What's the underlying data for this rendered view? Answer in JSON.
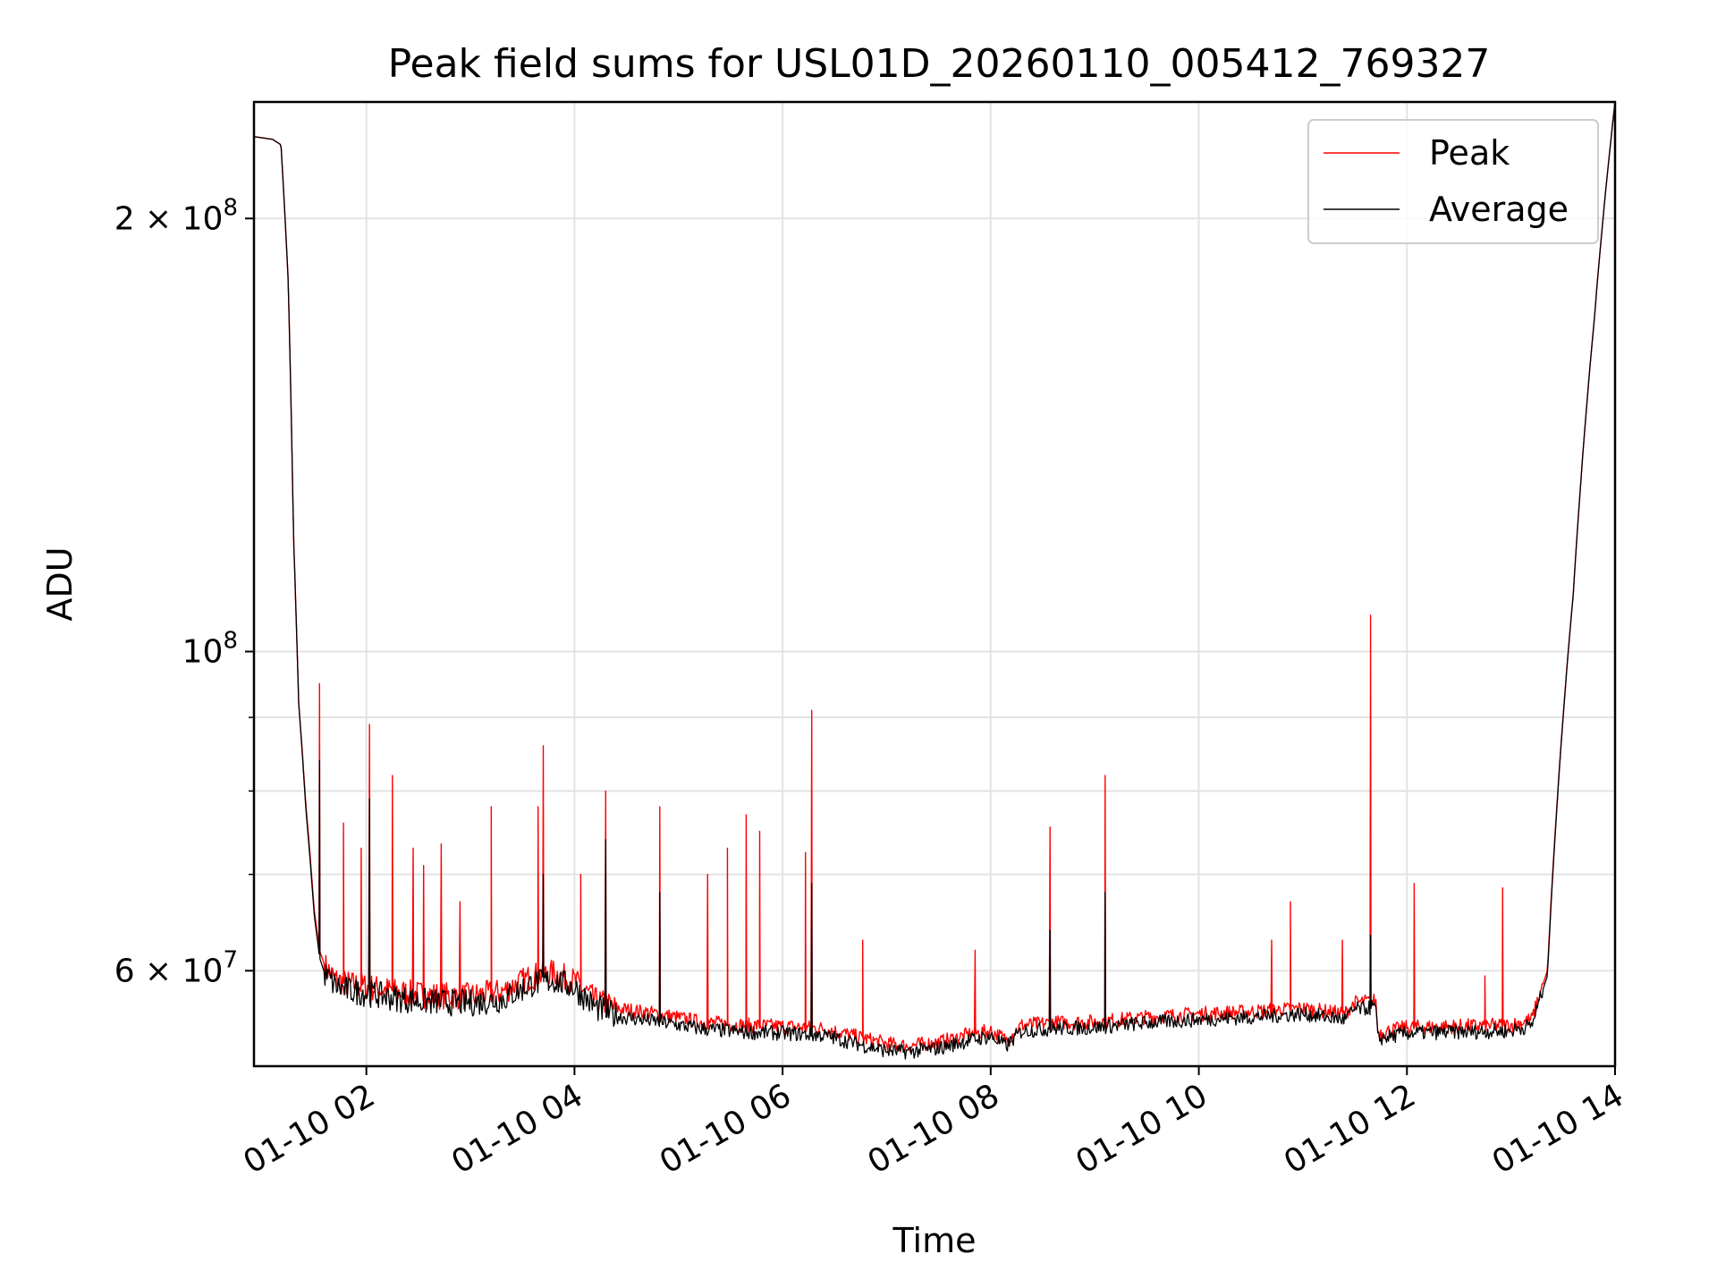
{
  "chart_data": {
    "type": "line",
    "title": "Peak field sums for USL01D_20260110_005412_769327",
    "xlabel": "Time",
    "ylabel": "ADU",
    "yscale": "log",
    "ylim": [
      51500000,
      241000000
    ],
    "xlim_hours": [
      0.92,
      14.0
    ],
    "x_ticks": [
      {
        "hours": 2,
        "label": "01-10 02"
      },
      {
        "hours": 4,
        "label": "01-10 04"
      },
      {
        "hours": 6,
        "label": "01-10 06"
      },
      {
        "hours": 8,
        "label": "01-10 08"
      },
      {
        "hours": 10,
        "label": "01-10 10"
      },
      {
        "hours": 12,
        "label": "01-10 12"
      },
      {
        "hours": 14,
        "label": "01-10 14"
      }
    ],
    "y_major_ticks": [
      {
        "value": 60000000,
        "label_base": "6 × 10",
        "label_exp": "7"
      },
      {
        "value": 100000000,
        "label_base": "10",
        "label_exp": "8"
      },
      {
        "value": 200000000,
        "label_base": "2 × 10",
        "label_exp": "8"
      }
    ],
    "y_minor_ticks": [
      70000000,
      80000000,
      90000000
    ],
    "grid": true,
    "legend_position": "top-right",
    "series": [
      {
        "name": "Peak",
        "color": "#ff0000",
        "x_hours": [
          0.92,
          1.1,
          1.18,
          1.25,
          1.3,
          1.35,
          1.42,
          1.5,
          1.55,
          1.6,
          1.7,
          1.8,
          2.0,
          2.3,
          2.6,
          3.0,
          3.3,
          3.6,
          3.8,
          4.0,
          4.2,
          4.4,
          4.8,
          5.2,
          5.6,
          6.0,
          6.4,
          6.8,
          7.0,
          7.2,
          7.5,
          7.8,
          8.0,
          8.15,
          8.3,
          8.6,
          9.0,
          9.5,
          10.0,
          10.5,
          11.0,
          11.4,
          11.5,
          11.7,
          11.72,
          12.0,
          12.5,
          13.0,
          13.2,
          13.35,
          13.6,
          13.8,
          14.0
        ],
        "y": [
          228000000,
          227000000,
          225000000,
          180000000,
          120000000,
          92000000,
          78000000,
          66000000,
          62000000,
          60500000,
          59200000,
          58800000,
          58500000,
          58000000,
          57700000,
          57600000,
          58000000,
          59500000,
          59800000,
          59000000,
          57200000,
          56500000,
          56000000,
          55300000,
          55000000,
          54900000,
          54700000,
          53800000,
          53400000,
          53200000,
          53500000,
          54200000,
          54500000,
          53700000,
          55000000,
          55200000,
          55300000,
          55700000,
          56000000,
          56200000,
          56500000,
          56000000,
          57000000,
          57200000,
          54300000,
          54800000,
          54900000,
          55000000,
          55500000,
          60000000,
          110000000,
          170000000,
          241000000
        ],
        "spikes": [
          {
            "x_hours": 1.55,
            "y": 95000000
          },
          {
            "x_hours": 1.78,
            "y": 76000000
          },
          {
            "x_hours": 1.95,
            "y": 73000000
          },
          {
            "x_hours": 2.03,
            "y": 89000000
          },
          {
            "x_hours": 2.25,
            "y": 82000000
          },
          {
            "x_hours": 2.45,
            "y": 73000000
          },
          {
            "x_hours": 2.55,
            "y": 71000000
          },
          {
            "x_hours": 2.72,
            "y": 73500000
          },
          {
            "x_hours": 2.9,
            "y": 67000000
          },
          {
            "x_hours": 3.2,
            "y": 78000000
          },
          {
            "x_hours": 3.65,
            "y": 78000000
          },
          {
            "x_hours": 3.7,
            "y": 86000000
          },
          {
            "x_hours": 4.06,
            "y": 70000000
          },
          {
            "x_hours": 4.3,
            "y": 80000000
          },
          {
            "x_hours": 4.82,
            "y": 78000000
          },
          {
            "x_hours": 5.28,
            "y": 70000000
          },
          {
            "x_hours": 5.47,
            "y": 73000000
          },
          {
            "x_hours": 5.65,
            "y": 77000000
          },
          {
            "x_hours": 5.78,
            "y": 75000000
          },
          {
            "x_hours": 6.22,
            "y": 72500000
          },
          {
            "x_hours": 6.28,
            "y": 91000000
          },
          {
            "x_hours": 6.77,
            "y": 63000000
          },
          {
            "x_hours": 7.85,
            "y": 62000000
          },
          {
            "x_hours": 8.57,
            "y": 75500000
          },
          {
            "x_hours": 9.1,
            "y": 82000000
          },
          {
            "x_hours": 10.7,
            "y": 63000000
          },
          {
            "x_hours": 10.88,
            "y": 67000000
          },
          {
            "x_hours": 11.38,
            "y": 63000000
          },
          {
            "x_hours": 11.65,
            "y": 106000000
          },
          {
            "x_hours": 12.07,
            "y": 69000000
          },
          {
            "x_hours": 12.75,
            "y": 59500000
          },
          {
            "x_hours": 12.92,
            "y": 68500000
          }
        ]
      },
      {
        "name": "Average",
        "color": "#000000",
        "x_hours": [
          0.92,
          1.1,
          1.18,
          1.25,
          1.3,
          1.35,
          1.42,
          1.5,
          1.55,
          1.6,
          1.7,
          1.8,
          2.0,
          2.3,
          2.6,
          3.0,
          3.3,
          3.6,
          3.8,
          4.0,
          4.2,
          4.4,
          4.8,
          5.2,
          5.6,
          6.0,
          6.4,
          6.8,
          7.0,
          7.2,
          7.5,
          7.8,
          8.0,
          8.15,
          8.3,
          8.6,
          9.0,
          9.5,
          10.0,
          10.5,
          11.0,
          11.4,
          11.5,
          11.7,
          11.72,
          12.0,
          12.5,
          13.0,
          13.2,
          13.35,
          13.6,
          13.8,
          14.0
        ],
        "y": [
          228000000,
          227000000,
          225000000,
          180000000,
          120000000,
          92000000,
          77500000,
          65500000,
          61300000,
          59700000,
          58600000,
          58200000,
          57900000,
          57400000,
          57100000,
          57000000,
          57300000,
          58800000,
          59100000,
          58400000,
          56600000,
          55800000,
          55300000,
          54700000,
          54400000,
          54300000,
          54100000,
          53200000,
          52800000,
          52700000,
          53000000,
          53700000,
          54000000,
          53200000,
          54500000,
          54700000,
          54800000,
          55200000,
          55500000,
          55700000,
          56000000,
          55500000,
          56400000,
          56600000,
          53800000,
          54300000,
          54400000,
          54500000,
          55000000,
          59500000,
          110000000,
          170000000,
          241000000
        ],
        "spikes": [
          {
            "x_hours": 1.55,
            "y": 84000000
          },
          {
            "x_hours": 2.03,
            "y": 79000000
          },
          {
            "x_hours": 3.7,
            "y": 70000000
          },
          {
            "x_hours": 4.3,
            "y": 74000000
          },
          {
            "x_hours": 4.82,
            "y": 68000000
          },
          {
            "x_hours": 6.28,
            "y": 69000000
          },
          {
            "x_hours": 8.57,
            "y": 64000000
          },
          {
            "x_hours": 9.1,
            "y": 68000000
          },
          {
            "x_hours": 11.65,
            "y": 63500000
          }
        ]
      }
    ]
  }
}
